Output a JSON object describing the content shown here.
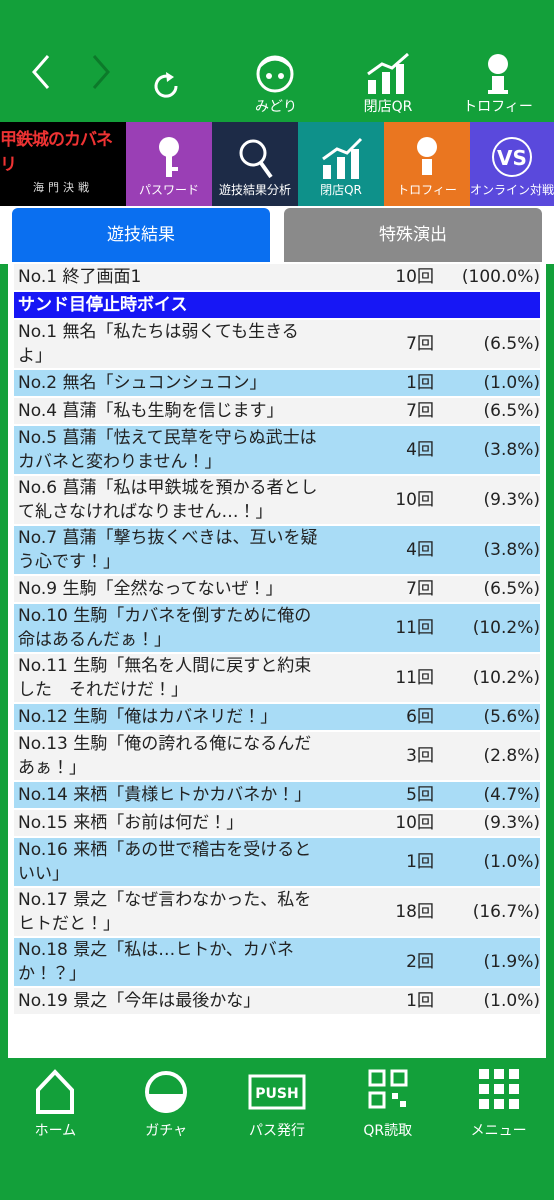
{
  "top_bar": {
    "icons": [
      "みどり",
      "閉店QR",
      "トロフィー"
    ]
  },
  "menu": {
    "logo": {
      "title": "甲鉄城のカバネリ",
      "subtitle": "海門決戦"
    },
    "tiles": [
      "パスワード",
      "遊技結果分析",
      "閉店QR",
      "トロフィー",
      "オンライン対戦"
    ]
  },
  "tabs": [
    "遊技結果",
    "特殊演出"
  ],
  "summary": {
    "name": "No.1 終了画面1",
    "count": "10回",
    "percent": "(100.0%)"
  },
  "section": {
    "title": "サンド目停止時ボイス",
    "rows": [
      {
        "name": "No.1 無名「私たちは弱くても生きるよ」",
        "count": "7回",
        "percent": "(6.5%)"
      },
      {
        "name": "No.2 無名「シュコンシュコン」",
        "count": "1回",
        "percent": "(1.0%)"
      },
      {
        "name": "No.4 菖蒲「私も生駒を信じます」",
        "count": "7回",
        "percent": "(6.5%)"
      },
      {
        "name": "No.5 菖蒲「怯えて民草を守らぬ武士はカバネと変わりません！」",
        "count": "4回",
        "percent": "(3.8%)"
      },
      {
        "name": "No.6 菖蒲「私は甲鉄城を預かる者として糺さなければなりません…！」",
        "count": "10回",
        "percent": "(9.3%)"
      },
      {
        "name": "No.7 菖蒲「撃ち抜くべきは、互いを疑う心です！」",
        "count": "4回",
        "percent": "(3.8%)"
      },
      {
        "name": "No.9 生駒「全然なってないぜ！」",
        "count": "7回",
        "percent": "(6.5%)"
      },
      {
        "name": "No.10 生駒「カバネを倒すために俺の命はあるんだぁ！」",
        "count": "11回",
        "percent": "(10.2%)"
      },
      {
        "name": "No.11 生駒「無名を人間に戻すと約束した　それだけだ！」",
        "count": "11回",
        "percent": "(10.2%)"
      },
      {
        "name": "No.12 生駒「俺はカバネリだ！」",
        "count": "6回",
        "percent": "(5.6%)"
      },
      {
        "name": "No.13 生駒「俺の誇れる俺になるんだあぁ！」",
        "count": "3回",
        "percent": "(2.8%)"
      },
      {
        "name": "No.14 来栖「貴様ヒトかカバネか！」",
        "count": "5回",
        "percent": "(4.7%)"
      },
      {
        "name": "No.15 来栖「お前は何だ！」",
        "count": "10回",
        "percent": "(9.3%)"
      },
      {
        "name": "No.16 来栖「あの世で稽古を受けるといい」",
        "count": "1回",
        "percent": "(1.0%)"
      },
      {
        "name": "No.17 景之「なぜ言わなかった、私をヒトだと！」",
        "count": "18回",
        "percent": "(16.7%)"
      },
      {
        "name": "No.18 景之「私は…ヒトか、カバネか！？」",
        "count": "2回",
        "percent": "(1.9%)"
      },
      {
        "name": "No.19 景之「今年は最後かな」",
        "count": "1回",
        "percent": "(1.0%)"
      }
    ]
  },
  "bottom_nav": [
    "ホーム",
    "ガチャ",
    "パス発行",
    "QR読取",
    "メニュー"
  ]
}
